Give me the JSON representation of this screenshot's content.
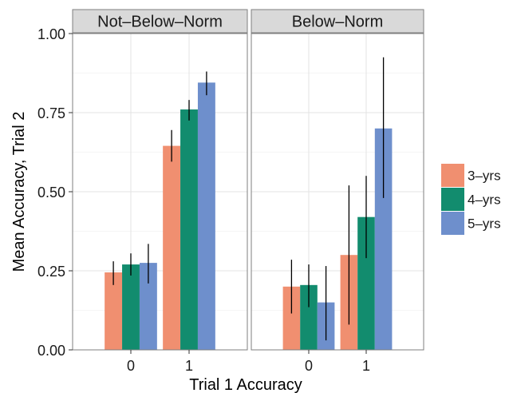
{
  "chart_data": {
    "type": "bar",
    "xlabel": "Trial 1 Accuracy",
    "ylabel": "Mean Accuracy, Trial 2",
    "ylim": [
      0,
      1
    ],
    "yticks": [
      "0.00",
      "0.25",
      "0.50",
      "0.75",
      "1.00"
    ],
    "categories": [
      "0",
      "1"
    ],
    "legend": {
      "placement": "right",
      "entries": [
        {
          "name": "3–yrs",
          "color": "#F08F70"
        },
        {
          "name": "4–yrs",
          "color": "#128C6E"
        },
        {
          "name": "5–yrs",
          "color": "#6E8FCC"
        }
      ]
    },
    "grid": true,
    "panels": [
      {
        "title": "Not–Below–Norm",
        "series": [
          {
            "name": "3–yrs",
            "values": [
              0.245,
              0.645
            ],
            "err_low": [
              0.205,
              0.595
            ],
            "err_high": [
              0.28,
              0.695
            ]
          },
          {
            "name": "4–yrs",
            "values": [
              0.27,
              0.76
            ],
            "err_low": [
              0.235,
              0.725
            ],
            "err_high": [
              0.305,
              0.79
            ]
          },
          {
            "name": "5–yrs",
            "values": [
              0.275,
              0.845
            ],
            "err_low": [
              0.21,
              0.805
            ],
            "err_high": [
              0.335,
              0.88
            ]
          }
        ]
      },
      {
        "title": "Below–Norm",
        "series": [
          {
            "name": "3–yrs",
            "values": [
              0.2,
              0.3
            ],
            "err_low": [
              0.115,
              0.08
            ],
            "err_high": [
              0.285,
              0.52
            ]
          },
          {
            "name": "4–yrs",
            "values": [
              0.205,
              0.42
            ],
            "err_low": [
              0.135,
              0.29
            ],
            "err_high": [
              0.27,
              0.55
            ]
          },
          {
            "name": "5–yrs",
            "values": [
              0.15,
              0.7
            ],
            "err_low": [
              0.03,
              0.48
            ],
            "err_high": [
              0.265,
              0.925
            ]
          }
        ]
      }
    ]
  }
}
